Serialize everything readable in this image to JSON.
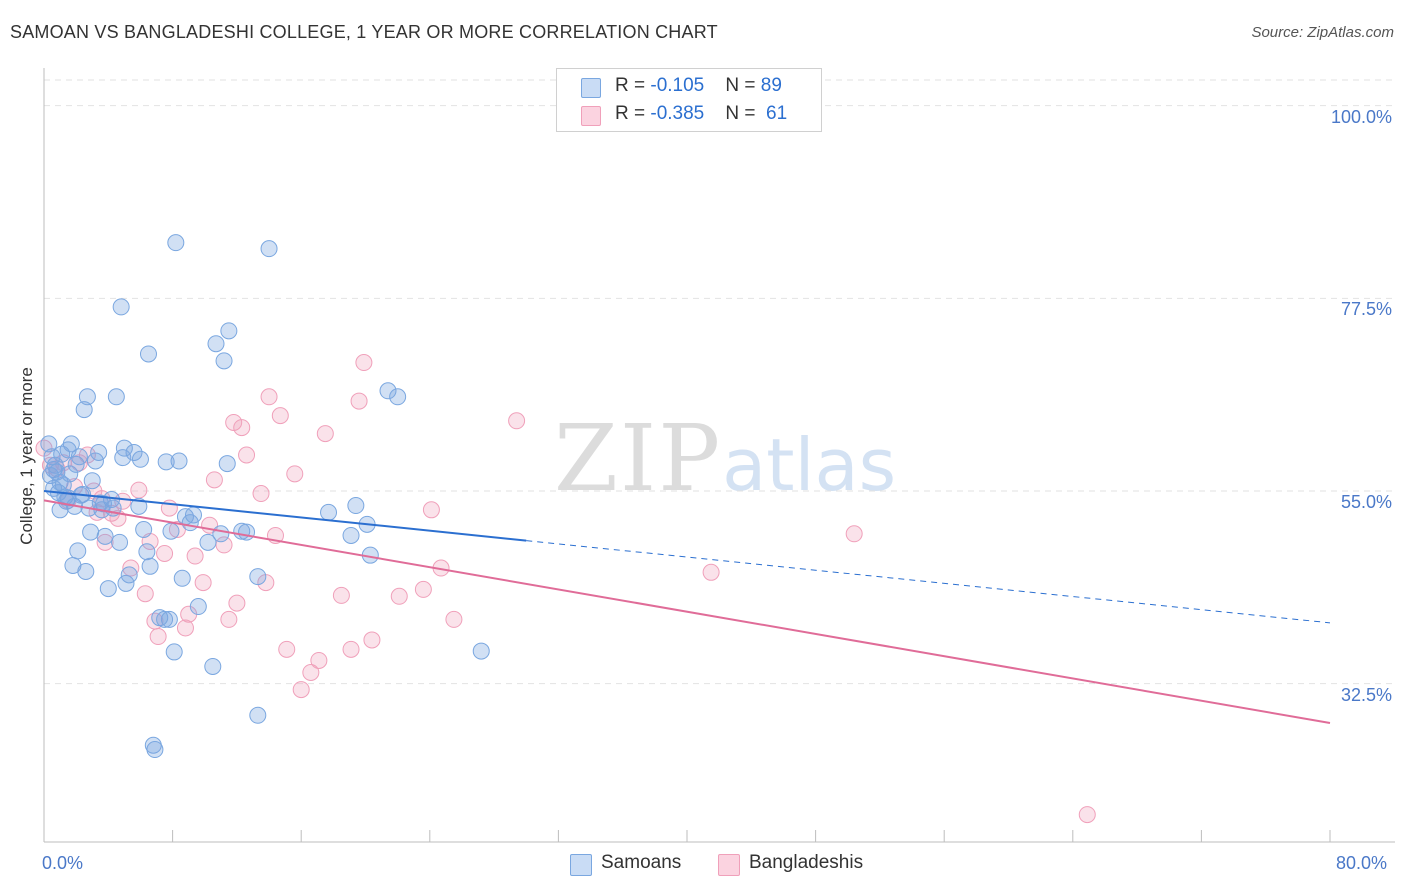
{
  "title": "SAMOAN VS BANGLADESHI COLLEGE, 1 YEAR OR MORE CORRELATION CHART",
  "source": "Source: ZipAtlas.com",
  "watermark": {
    "zip": "ZIP",
    "atlas": "atlas"
  },
  "stats_legend": {
    "rows": [
      {
        "r_label": "R = ",
        "r_value": "-0.105",
        "n_label": "N = ",
        "n_value": "89",
        "color": "#7aa7e0"
      },
      {
        "r_label": "R = ",
        "r_value": "-0.385",
        "n_label": "N = ",
        "n_value": " 61",
        "color": "#f0a0ba"
      }
    ]
  },
  "chart_data": {
    "type": "scatter",
    "title": "SAMOAN VS BANGLADESHI COLLEGE, 1 YEAR OR MORE CORRELATION CHART",
    "xlabel": "",
    "ylabel": "College, 1 year or more",
    "xlim": [
      0,
      80
    ],
    "ylim": [
      14,
      103
    ],
    "x_tick_labels": [
      "0.0%",
      "80.0%"
    ],
    "y_ticks": [
      {
        "value": 100,
        "label": "100.0%"
      },
      {
        "value": 77.5,
        "label": "77.5%"
      },
      {
        "value": 55,
        "label": "55.0%"
      },
      {
        "value": 32.5,
        "label": "32.5%"
      }
    ],
    "grid": true,
    "legend_position": "bottom-center",
    "series": [
      {
        "name": "Samoans",
        "color": "#7aa7e0",
        "line_color": "#2b6fd0",
        "trend": {
          "x_start": 0,
          "y_start": 55.0,
          "x_end": 30,
          "y_end": 49.2,
          "dash_x_end": 80,
          "dash_y_end": 39.6
        },
        "points": [
          [
            0.3,
            60.5
          ],
          [
            0.5,
            59.0
          ],
          [
            0.6,
            57.5
          ],
          [
            0.6,
            55.3
          ],
          [
            0.7,
            58.0
          ],
          [
            0.8,
            57.2
          ],
          [
            0.9,
            54.8
          ],
          [
            1.0,
            56.0
          ],
          [
            1.1,
            59.3
          ],
          [
            1.2,
            55.7
          ],
          [
            1.3,
            54.3
          ],
          [
            1.4,
            53.8
          ],
          [
            1.5,
            54.2
          ],
          [
            1.6,
            57.0
          ],
          [
            1.7,
            60.5
          ],
          [
            1.8,
            46.3
          ],
          [
            1.9,
            53.2
          ],
          [
            2.0,
            58.1
          ],
          [
            2.1,
            48.0
          ],
          [
            2.2,
            59.0
          ],
          [
            2.3,
            54.5
          ],
          [
            2.5,
            64.5
          ],
          [
            2.6,
            45.6
          ],
          [
            2.7,
            66.0
          ],
          [
            2.8,
            53.0
          ],
          [
            2.9,
            50.2
          ],
          [
            3.0,
            56.2
          ],
          [
            3.2,
            58.5
          ],
          [
            3.4,
            59.5
          ],
          [
            3.6,
            52.8
          ],
          [
            3.7,
            53.5
          ],
          [
            3.8,
            49.7
          ],
          [
            4.0,
            43.6
          ],
          [
            4.2,
            54.0
          ],
          [
            4.3,
            53.0
          ],
          [
            4.5,
            66.0
          ],
          [
            4.7,
            49.0
          ],
          [
            4.8,
            76.5
          ],
          [
            4.9,
            58.9
          ],
          [
            5.0,
            60.0
          ],
          [
            5.1,
            44.2
          ],
          [
            5.3,
            45.2
          ],
          [
            5.6,
            59.5
          ],
          [
            5.9,
            53.2
          ],
          [
            6.0,
            58.7
          ],
          [
            6.4,
            47.9
          ],
          [
            6.5,
            71.0
          ],
          [
            6.6,
            46.2
          ],
          [
            6.8,
            25.3
          ],
          [
            6.9,
            24.8
          ],
          [
            7.2,
            40.2
          ],
          [
            7.5,
            40.0
          ],
          [
            7.6,
            58.4
          ],
          [
            7.8,
            40.0
          ],
          [
            7.9,
            50.3
          ],
          [
            8.1,
            36.2
          ],
          [
            8.2,
            84.0
          ],
          [
            8.4,
            58.5
          ],
          [
            8.6,
            44.8
          ],
          [
            8.8,
            52.0
          ],
          [
            9.1,
            51.3
          ],
          [
            9.6,
            41.5
          ],
          [
            10.2,
            49.0
          ],
          [
            10.5,
            34.5
          ],
          [
            10.7,
            72.2
          ],
          [
            11.0,
            50.0
          ],
          [
            11.2,
            70.2
          ],
          [
            11.4,
            58.2
          ],
          [
            11.5,
            73.7
          ],
          [
            12.3,
            50.3
          ],
          [
            12.6,
            50.2
          ],
          [
            13.3,
            28.8
          ],
          [
            13.3,
            45.0
          ],
          [
            14.0,
            83.3
          ],
          [
            17.7,
            52.5
          ],
          [
            19.1,
            49.8
          ],
          [
            19.4,
            53.3
          ],
          [
            20.1,
            51.1
          ],
          [
            20.3,
            47.5
          ],
          [
            21.4,
            66.7
          ],
          [
            22.0,
            66.0
          ],
          [
            27.2,
            36.3
          ],
          [
            0.4,
            56.8
          ],
          [
            1.0,
            52.8
          ],
          [
            2.4,
            54.6
          ],
          [
            3.5,
            53.6
          ],
          [
            6.2,
            50.5
          ],
          [
            9.3,
            52.2
          ],
          [
            1.5,
            59.8
          ]
        ]
      },
      {
        "name": "Bangladeshis",
        "color": "#f0a0ba",
        "line_color": "#e06c98",
        "trend": {
          "x_start": 0,
          "y_start": 53.9,
          "x_end": 80,
          "y_end": 27.9
        },
        "points": [
          [
            0.0,
            60.0
          ],
          [
            0.4,
            58.0
          ],
          [
            0.8,
            57.6
          ],
          [
            1.2,
            58.3
          ],
          [
            1.5,
            53.9
          ],
          [
            1.9,
            55.5
          ],
          [
            2.2,
            58.3
          ],
          [
            2.7,
            59.2
          ],
          [
            3.1,
            55.0
          ],
          [
            3.3,
            52.5
          ],
          [
            3.6,
            54.1
          ],
          [
            3.8,
            49.0
          ],
          [
            4.2,
            52.4
          ],
          [
            4.6,
            51.8
          ],
          [
            4.9,
            53.8
          ],
          [
            5.4,
            46.0
          ],
          [
            5.9,
            55.1
          ],
          [
            6.3,
            43.0
          ],
          [
            6.6,
            49.1
          ],
          [
            6.9,
            39.8
          ],
          [
            7.1,
            38.0
          ],
          [
            7.5,
            47.7
          ],
          [
            7.8,
            53.0
          ],
          [
            8.3,
            50.5
          ],
          [
            8.8,
            39.0
          ],
          [
            9.0,
            40.6
          ],
          [
            9.4,
            47.4
          ],
          [
            9.9,
            44.3
          ],
          [
            10.3,
            51.0
          ],
          [
            10.6,
            56.3
          ],
          [
            11.2,
            48.7
          ],
          [
            11.5,
            40.0
          ],
          [
            11.8,
            63.0
          ],
          [
            12.0,
            41.9
          ],
          [
            12.3,
            62.4
          ],
          [
            12.6,
            59.2
          ],
          [
            13.5,
            54.7
          ],
          [
            13.8,
            44.3
          ],
          [
            14.0,
            66.0
          ],
          [
            14.4,
            49.8
          ],
          [
            14.7,
            63.8
          ],
          [
            15.1,
            36.5
          ],
          [
            15.6,
            57.0
          ],
          [
            16.0,
            31.8
          ],
          [
            16.6,
            33.8
          ],
          [
            17.1,
            35.2
          ],
          [
            17.5,
            61.7
          ],
          [
            18.5,
            42.8
          ],
          [
            19.1,
            36.5
          ],
          [
            19.6,
            65.5
          ],
          [
            19.9,
            70.0
          ],
          [
            20.4,
            37.6
          ],
          [
            22.1,
            42.7
          ],
          [
            23.6,
            43.5
          ],
          [
            24.1,
            52.8
          ],
          [
            24.7,
            46.0
          ],
          [
            25.5,
            40.0
          ],
          [
            29.4,
            63.2
          ],
          [
            41.5,
            45.5
          ],
          [
            50.4,
            50.0
          ],
          [
            64.9,
            17.2
          ]
        ]
      }
    ]
  }
}
